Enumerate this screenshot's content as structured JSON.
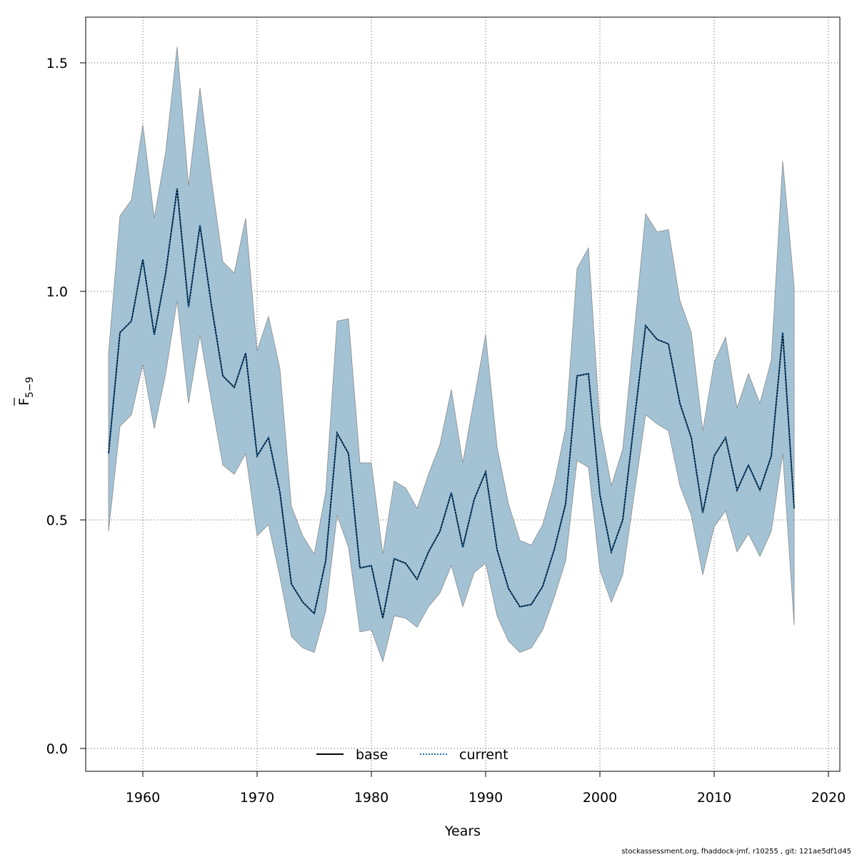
{
  "chart_data": {
    "type": "line",
    "xlabel": "Years",
    "ylabel": {
      "main": "F",
      "sub": "5−9"
    },
    "xlim": [
      1955,
      2021
    ],
    "ylim": [
      -0.05,
      1.6
    ],
    "x_ticks": [
      "1960",
      "1970",
      "1980",
      "1990",
      "2000",
      "2010",
      "2020"
    ],
    "y_ticks": [
      "0.0",
      "0.5",
      "1.0",
      "1.5"
    ],
    "grid": true,
    "legend": {
      "position": "bottom-center",
      "entries": [
        "base",
        "current"
      ]
    },
    "band_color": "#a3c3d5",
    "band_edge_color": "#8a8a8a",
    "line_color": "#000000",
    "current_line_color": "#1f6fae",
    "x": [
      1957,
      1958,
      1959,
      1960,
      1961,
      1962,
      1963,
      1964,
      1965,
      1966,
      1967,
      1968,
      1969,
      1970,
      1971,
      1972,
      1973,
      1974,
      1975,
      1976,
      1977,
      1978,
      1979,
      1980,
      1981,
      1982,
      1983,
      1984,
      1985,
      1986,
      1987,
      1988,
      1989,
      1990,
      1991,
      1992,
      1993,
      1994,
      1995,
      1996,
      1997,
      1998,
      1999,
      2000,
      2001,
      2002,
      2003,
      2004,
      2005,
      2006,
      2007,
      2008,
      2009,
      2010,
      2011,
      2012,
      2013,
      2014,
      2015,
      2016,
      2017
    ],
    "series": [
      {
        "name": "base",
        "style": "solid",
        "values": [
          0.645,
          0.91,
          0.935,
          1.07,
          0.905,
          1.04,
          1.225,
          0.965,
          1.145,
          0.97,
          0.815,
          0.79,
          0.865,
          0.64,
          0.68,
          0.56,
          0.36,
          0.32,
          0.295,
          0.41,
          0.69,
          0.645,
          0.395,
          0.4,
          0.285,
          0.415,
          0.405,
          0.37,
          0.43,
          0.475,
          0.56,
          0.44,
          0.545,
          0.605,
          0.435,
          0.35,
          0.31,
          0.315,
          0.355,
          0.435,
          0.535,
          0.815,
          0.82,
          0.555,
          0.43,
          0.5,
          0.715,
          0.925,
          0.895,
          0.885,
          0.755,
          0.68,
          0.515,
          0.64,
          0.68,
          0.565,
          0.62,
          0.565,
          0.64,
          0.91,
          0.525
        ]
      },
      {
        "name": "current",
        "style": "dotted",
        "values": [
          0.645,
          0.91,
          0.935,
          1.07,
          0.905,
          1.04,
          1.225,
          0.965,
          1.145,
          0.97,
          0.815,
          0.79,
          0.865,
          0.64,
          0.68,
          0.56,
          0.36,
          0.32,
          0.295,
          0.41,
          0.69,
          0.645,
          0.395,
          0.4,
          0.285,
          0.415,
          0.405,
          0.37,
          0.43,
          0.475,
          0.56,
          0.44,
          0.545,
          0.605,
          0.435,
          0.35,
          0.31,
          0.315,
          0.355,
          0.435,
          0.535,
          0.815,
          0.82,
          0.555,
          0.43,
          0.5,
          0.715,
          0.925,
          0.895,
          0.885,
          0.755,
          0.68,
          0.515,
          0.64,
          0.68,
          0.565,
          0.62,
          0.565,
          0.64,
          0.91,
          0.525
        ]
      }
    ],
    "band": {
      "upper": [
        0.865,
        1.165,
        1.2,
        1.365,
        1.16,
        1.305,
        1.535,
        1.23,
        1.445,
        1.245,
        1.065,
        1.04,
        1.16,
        0.87,
        0.945,
        0.83,
        0.53,
        0.465,
        0.425,
        0.56,
        0.935,
        0.94,
        0.625,
        0.625,
        0.425,
        0.585,
        0.57,
        0.525,
        0.6,
        0.665,
        0.785,
        0.625,
        0.765,
        0.905,
        0.66,
        0.535,
        0.455,
        0.445,
        0.49,
        0.58,
        0.7,
        1.05,
        1.095,
        0.71,
        0.575,
        0.655,
        0.91,
        1.17,
        1.13,
        1.135,
        0.98,
        0.91,
        0.695,
        0.845,
        0.9,
        0.745,
        0.82,
        0.755,
        0.85,
        1.285,
        1.01
      ],
      "lower": [
        0.475,
        0.705,
        0.73,
        0.84,
        0.7,
        0.82,
        0.98,
        0.755,
        0.905,
        0.76,
        0.62,
        0.6,
        0.645,
        0.465,
        0.49,
        0.375,
        0.245,
        0.22,
        0.21,
        0.3,
        0.51,
        0.44,
        0.255,
        0.26,
        0.19,
        0.29,
        0.285,
        0.265,
        0.31,
        0.34,
        0.4,
        0.31,
        0.385,
        0.405,
        0.29,
        0.235,
        0.21,
        0.22,
        0.26,
        0.33,
        0.41,
        0.63,
        0.615,
        0.39,
        0.32,
        0.38,
        0.555,
        0.73,
        0.71,
        0.695,
        0.575,
        0.51,
        0.38,
        0.485,
        0.52,
        0.43,
        0.47,
        0.42,
        0.475,
        0.645,
        0.27
      ]
    }
  },
  "footnote": "stockassessment.org, fhaddock-jmf, r10255 , git: 121ae5df1d45"
}
